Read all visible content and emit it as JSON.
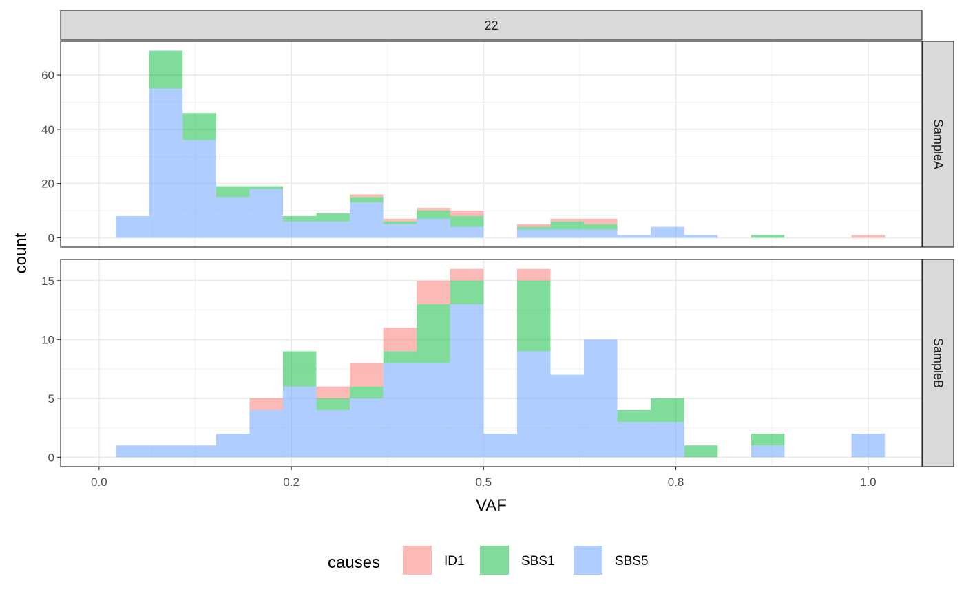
{
  "chart_data": {
    "type": "histogram-stacked",
    "facet_column_label": "22",
    "xlabel": "VAF",
    "ylabel": "count",
    "xlim": [
      -0.05,
      1.07
    ],
    "x_ticks": [
      0.0,
      0.25,
      0.5,
      0.75,
      1.0
    ],
    "x_tick_labels": [
      "0.0",
      "0.2",
      "0.5",
      "0.8",
      "1.0"
    ],
    "bin_width": 0.04348,
    "bin_starts": [
      0.0217,
      0.0652,
      0.1087,
      0.1522,
      0.1957,
      0.2391,
      0.2826,
      0.3261,
      0.3696,
      0.413,
      0.4565,
      0.5,
      0.5435,
      0.587,
      0.6304,
      0.6739,
      0.7174,
      0.7609,
      0.8043,
      0.8478,
      0.8913,
      0.9348,
      0.9783
    ],
    "legend": {
      "title": "causes",
      "entries": [
        {
          "name": "ID1",
          "color": "#F8766D"
        },
        {
          "name": "SBS1",
          "color": "#00BA38"
        },
        {
          "name": "SBS5",
          "color": "#619CFF"
        }
      ]
    },
    "panels": [
      {
        "row_label": "SampleA",
        "ylim": [
          -3.45,
          72.45
        ],
        "y_ticks": [
          0,
          20,
          40,
          60
        ],
        "y_tick_labels": [
          "0",
          "20",
          "40",
          "60"
        ],
        "series": [
          {
            "name": "SBS5",
            "values": [
              8,
              55,
              36,
              15,
              18,
              6,
              6,
              13,
              5,
              7,
              4,
              0,
              3,
              3,
              3,
              1,
              4,
              1,
              0,
              0,
              0,
              0,
              0
            ]
          },
          {
            "name": "SBS1",
            "values": [
              0,
              14,
              10,
              4,
              1,
              2,
              3,
              2,
              1,
              3,
              4,
              0,
              1,
              3,
              2,
              0,
              0,
              0,
              0,
              1,
              0,
              0,
              0
            ]
          },
          {
            "name": "ID1",
            "values": [
              0,
              0,
              0,
              0,
              0,
              0,
              0,
              1,
              1,
              1,
              2,
              0,
              1,
              1,
              2,
              0,
              0,
              0,
              0,
              0,
              0,
              0,
              1
            ]
          }
        ]
      },
      {
        "row_label": "SampleB",
        "ylim": [
          -0.8,
          16.8
        ],
        "y_ticks": [
          0,
          5,
          10,
          15
        ],
        "y_tick_labels": [
          "0",
          "5",
          "10",
          "15"
        ],
        "series": [
          {
            "name": "SBS5",
            "values": [
              1,
              1,
              1,
              2,
              4,
              6,
              4,
              5,
              8,
              8,
              13,
              2,
              9,
              7,
              10,
              3,
              3,
              0,
              0,
              1,
              0,
              0,
              2
            ]
          },
          {
            "name": "SBS1",
            "values": [
              0,
              0,
              0,
              0,
              0,
              3,
              1,
              1,
              1,
              5,
              2,
              0,
              6,
              0,
              0,
              1,
              2,
              1,
              0,
              1,
              0,
              0,
              0
            ]
          },
          {
            "name": "ID1",
            "values": [
              0,
              0,
              0,
              0,
              1,
              0,
              1,
              2,
              2,
              2,
              1,
              0,
              1,
              0,
              0,
              0,
              0,
              0,
              0,
              0,
              0,
              0,
              0
            ]
          }
        ]
      }
    ]
  }
}
